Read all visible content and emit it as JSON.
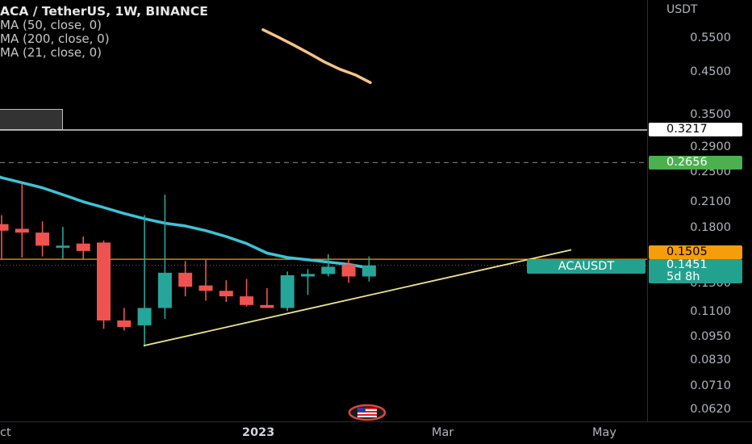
{
  "legend": {
    "title": "ACA / TetherUS, 1W, BINANCE",
    "indicators": [
      "MA (50, close, 0)",
      "MA (200, close, 0)",
      "MA (21, close, 0)"
    ]
  },
  "price_scale": {
    "currency": "USDT",
    "ticks": [
      "0.5500",
      "0.4500",
      "0.3500",
      "0.2900",
      "0.2500",
      "0.2100",
      "0.1800",
      "0.1300",
      "0.1100",
      "0.0950",
      "0.0830",
      "0.0710",
      "0.0620"
    ]
  },
  "time_scale": {
    "ticks": [
      "ct",
      "2023",
      "Mar",
      "May"
    ]
  },
  "badges": {
    "level_white": "0.3217",
    "level_green": "0.2656",
    "level_orange": "0.1505",
    "last_price": "0.1451",
    "countdown": "5d 8h",
    "symbol": "ACAUSDT"
  },
  "colors": {
    "up": "#26a69a",
    "down": "#ef5350",
    "ma21": "#3ec3d8",
    "ma200": "#f7c387",
    "trendline": "#f0e68c",
    "hline_orange": "#f59d0a",
    "green_badge": "#4caf50"
  },
  "chart_data": {
    "type": "candlestick",
    "log_scale": true,
    "title": "ACA / TetherUS, 1W, BINANCE",
    "ylim": [
      0.058,
      0.75
    ],
    "candles": [
      {
        "open": 0.185,
        "high": 0.195,
        "low": 0.15,
        "close": 0.178
      },
      {
        "open": 0.18,
        "high": 0.234,
        "low": 0.152,
        "close": 0.176
      },
      {
        "open": 0.176,
        "high": 0.188,
        "low": 0.153,
        "close": 0.163
      },
      {
        "open": 0.161,
        "high": 0.182,
        "low": 0.15,
        "close": 0.163
      },
      {
        "open": 0.165,
        "high": 0.172,
        "low": 0.151,
        "close": 0.158
      },
      {
        "open": 0.166,
        "high": 0.168,
        "low": 0.1,
        "close": 0.105
      },
      {
        "open": 0.105,
        "high": 0.113,
        "low": 0.099,
        "close": 0.101
      },
      {
        "open": 0.102,
        "high": 0.195,
        "low": 0.09,
        "close": 0.113
      },
      {
        "open": 0.113,
        "high": 0.22,
        "low": 0.106,
        "close": 0.139
      },
      {
        "open": 0.139,
        "high": 0.149,
        "low": 0.121,
        "close": 0.128
      },
      {
        "open": 0.129,
        "high": 0.15,
        "low": 0.118,
        "close": 0.125
      },
      {
        "open": 0.125,
        "high": 0.133,
        "low": 0.117,
        "close": 0.121
      },
      {
        "open": 0.121,
        "high": 0.134,
        "low": 0.114,
        "close": 0.115
      },
      {
        "open": 0.115,
        "high": 0.127,
        "low": 0.113,
        "close": 0.113
      },
      {
        "open": 0.113,
        "high": 0.14,
        "low": 0.111,
        "close": 0.137
      },
      {
        "open": 0.136,
        "high": 0.142,
        "low": 0.122,
        "close": 0.138
      },
      {
        "open": 0.138,
        "high": 0.155,
        "low": 0.136,
        "close": 0.144
      },
      {
        "open": 0.146,
        "high": 0.15,
        "low": 0.131,
        "close": 0.136
      },
      {
        "open": 0.136,
        "high": 0.153,
        "low": 0.132,
        "close": 0.1451
      }
    ],
    "ma21": [
      0.268,
      0.255,
      0.243,
      0.236,
      0.229,
      0.22,
      0.211,
      0.204,
      0.197,
      0.191,
      0.186,
      0.183,
      0.178,
      0.172,
      0.165,
      0.156,
      0.152,
      0.15,
      0.148,
      0.146,
      0.143
    ],
    "ma200": [
      0.58,
      0.555,
      0.53,
      0.505,
      0.48,
      0.46,
      0.445,
      0.425
    ],
    "trendline": {
      "from": 0.0905,
      "to": 0.159
    },
    "hlines": [
      {
        "value": 0.3217,
        "style": "solid",
        "color": "white"
      },
      {
        "value": 0.2656,
        "style": "dashed",
        "color": "grey"
      },
      {
        "value": 0.1505,
        "style": "solid",
        "color": "orange"
      },
      {
        "value": 0.1451,
        "style": "dotted",
        "color": "grey"
      }
    ]
  }
}
